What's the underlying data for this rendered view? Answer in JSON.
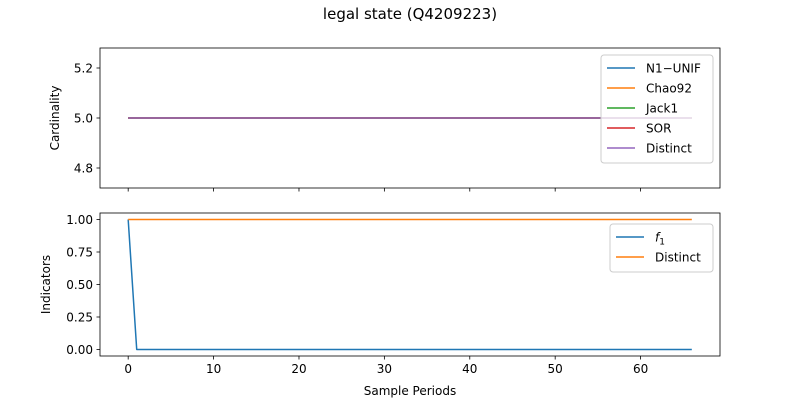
{
  "figure": {
    "title": "legal state (Q4209223)"
  },
  "chart_data": [
    {
      "type": "line",
      "ylabel": "Cardinality",
      "xlabel": "",
      "xlim": [
        -3.3,
        69.3
      ],
      "ylim": [
        4.72,
        5.28
      ],
      "xticks": [
        0,
        10,
        20,
        30,
        40,
        50,
        60
      ],
      "xtick_labels": [
        "",
        "",
        "",
        "",
        "",
        "",
        ""
      ],
      "yticks": [
        4.8,
        5.0,
        5.2
      ],
      "ytick_labels": [
        "4.8",
        "5.0",
        "5.2"
      ],
      "legend_position": "top-right",
      "series": [
        {
          "name": "N1−UNIF",
          "color": "#1f77b4",
          "x": [
            0,
            66
          ],
          "y": [
            5.0,
            5.0
          ]
        },
        {
          "name": "Chao92",
          "color": "#ff7f0e",
          "x": [
            0,
            66
          ],
          "y": [
            5.0,
            5.0
          ]
        },
        {
          "name": "Jack1",
          "color": "#2ca02c",
          "x": [
            0,
            66
          ],
          "y": [
            5.0,
            5.0
          ]
        },
        {
          "name": "SOR",
          "color": "#d62728",
          "x": [
            0,
            66
          ],
          "y": [
            5.0,
            5.0
          ]
        },
        {
          "name": "Distinct",
          "color": "#9467bd",
          "x": [
            0,
            66
          ],
          "y": [
            5.0,
            5.0
          ]
        }
      ]
    },
    {
      "type": "line",
      "ylabel": "Indicators",
      "xlabel": "Sample Periods",
      "xlim": [
        -3.3,
        69.3
      ],
      "ylim": [
        -0.05,
        1.05
      ],
      "xticks": [
        0,
        10,
        20,
        30,
        40,
        50,
        60
      ],
      "xtick_labels": [
        "0",
        "10",
        "20",
        "30",
        "40",
        "50",
        "60"
      ],
      "yticks": [
        0.0,
        0.25,
        0.5,
        0.75,
        1.0
      ],
      "ytick_labels": [
        "0.00",
        "0.25",
        "0.50",
        "0.75",
        "1.00"
      ],
      "legend_position": "top-right",
      "series": [
        {
          "name": "f1",
          "label_main": "f",
          "label_sub": "1",
          "color": "#1f77b4",
          "x": [
            0,
            1,
            66
          ],
          "y": [
            1.0,
            0.0,
            0.0
          ]
        },
        {
          "name": "Distinct",
          "color": "#ff7f0e",
          "x": [
            0,
            66
          ],
          "y": [
            1.0,
            1.0
          ]
        }
      ]
    }
  ]
}
